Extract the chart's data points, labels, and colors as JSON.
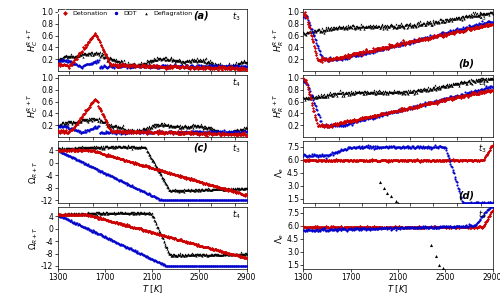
{
  "colors": {
    "detonation": "#CC0000",
    "ddt": "#0000CC",
    "deflagration": "#000000"
  },
  "xlim": [
    1300,
    2900
  ],
  "xticks": [
    1300,
    1700,
    2100,
    2500,
    2900
  ],
  "ab_ylim": [
    0.0,
    1.05
  ],
  "ab_yticks": [
    0.2,
    0.4,
    0.6,
    0.8,
    1.0
  ],
  "c_ylim": [
    -13,
    7
  ],
  "c_yticks": [
    -12,
    -8,
    -4,
    0,
    4
  ],
  "d_ylim": [
    1.0,
    8.2
  ],
  "d_yticks": [
    1.5,
    3.0,
    4.5,
    6.0,
    7.5
  ]
}
